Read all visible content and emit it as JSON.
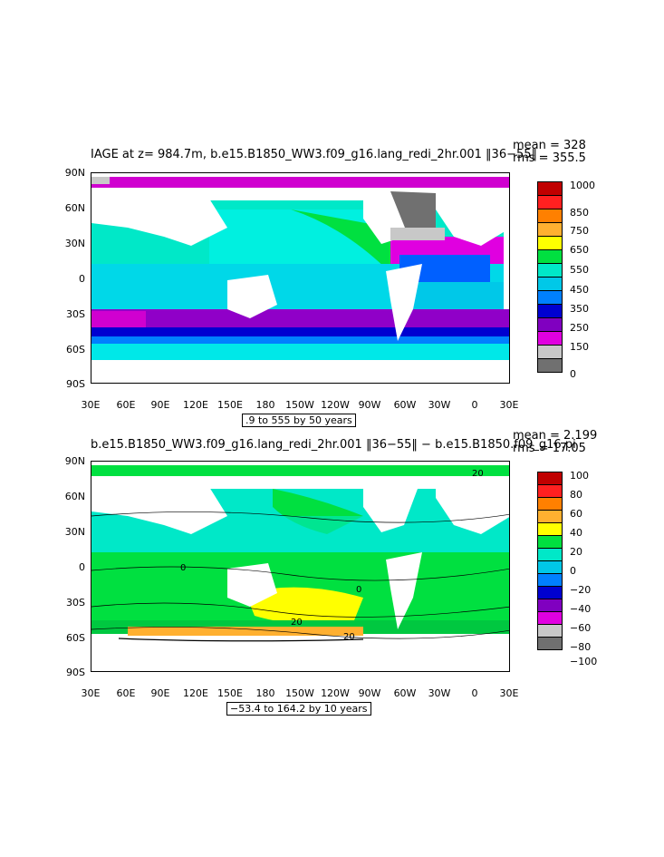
{
  "chart_data": [
    {
      "type": "heatmap",
      "title": "IAGE at z= 984.7m, b.e15.B1850_WW3.f09_g16.lang_redi_2hr.001 ‖36−55‖",
      "stat_mean": "mean = 328",
      "stat_rms": "rms = 355.5",
      "range_note": ".9 to 555 by 50 years",
      "y_ticks": [
        "90N",
        "60N",
        "30N",
        "0",
        "30S",
        "60S",
        "90S"
      ],
      "x_ticks": [
        "30E",
        "60E",
        "90E",
        "120E",
        "150E",
        "180",
        "150W",
        "120W",
        "90W",
        "60W",
        "30W",
        "0",
        "30E"
      ],
      "legend_levels": [
        "1000",
        "850",
        "750",
        "650",
        "550",
        "450",
        "350",
        "250",
        "150",
        "0"
      ],
      "colors": [
        "#c00000",
        "#ff2020",
        "#ff8000",
        "#ffb030",
        "#ffff00",
        "#00e040",
        "#00e8c8",
        "#00c8e8",
        "#0080ff",
        "#0000d0",
        "#8000c0",
        "#e000e0",
        "#c8c8c8",
        "#707070"
      ]
    },
    {
      "type": "heatmap",
      "title": "b.e15.B1850_WW3.f09_g16.lang_redi_2hr.001 ‖36−55‖ − b.e15.B1850.f09_g16.pi",
      "stat_mean": "mean = 2.199",
      "stat_rms": "rms = 17.05",
      "range_note": "−53.4 to 164.2 by 10 years",
      "y_ticks": [
        "90N",
        "60N",
        "30N",
        "0",
        "30S",
        "60S",
        "90S"
      ],
      "x_ticks": [
        "30E",
        "60E",
        "90E",
        "120E",
        "150E",
        "180",
        "150W",
        "120W",
        "90W",
        "60W",
        "30W",
        "0",
        "30E"
      ],
      "legend_levels": [
        "100",
        "80",
        "60",
        "40",
        "20",
        "0",
        "−20",
        "−40",
        "−60",
        "−80",
        "−100"
      ],
      "contour_labels": [
        "0",
        "0",
        "20",
        "20",
        "20"
      ],
      "colors": [
        "#c00000",
        "#ff2020",
        "#ff8000",
        "#ffb030",
        "#ffff00",
        "#00e040",
        "#00e8c8",
        "#00c8e8",
        "#0080ff",
        "#0000d0",
        "#8000c0",
        "#e000e0",
        "#c8c8c8",
        "#707070"
      ]
    }
  ]
}
